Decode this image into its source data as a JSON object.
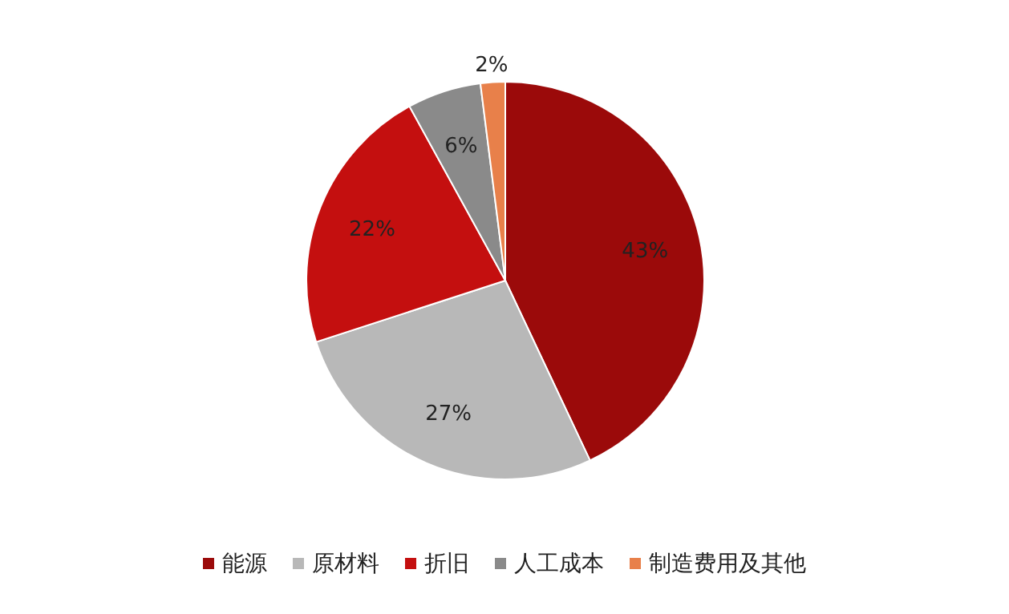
{
  "chart_data": {
    "type": "pie",
    "categories": [
      "能源",
      "原材料",
      "折旧",
      "人工成本",
      "制造费用及其他"
    ],
    "values": [
      43,
      27,
      22,
      6,
      2
    ],
    "colors": [
      "#9b0a0a",
      "#b8b8b8",
      "#c40f0f",
      "#8a8a8a",
      "#e8804a"
    ],
    "value_labels": [
      "43%",
      "27%",
      "22%",
      "6%",
      "2%"
    ],
    "legend": "bottom"
  }
}
